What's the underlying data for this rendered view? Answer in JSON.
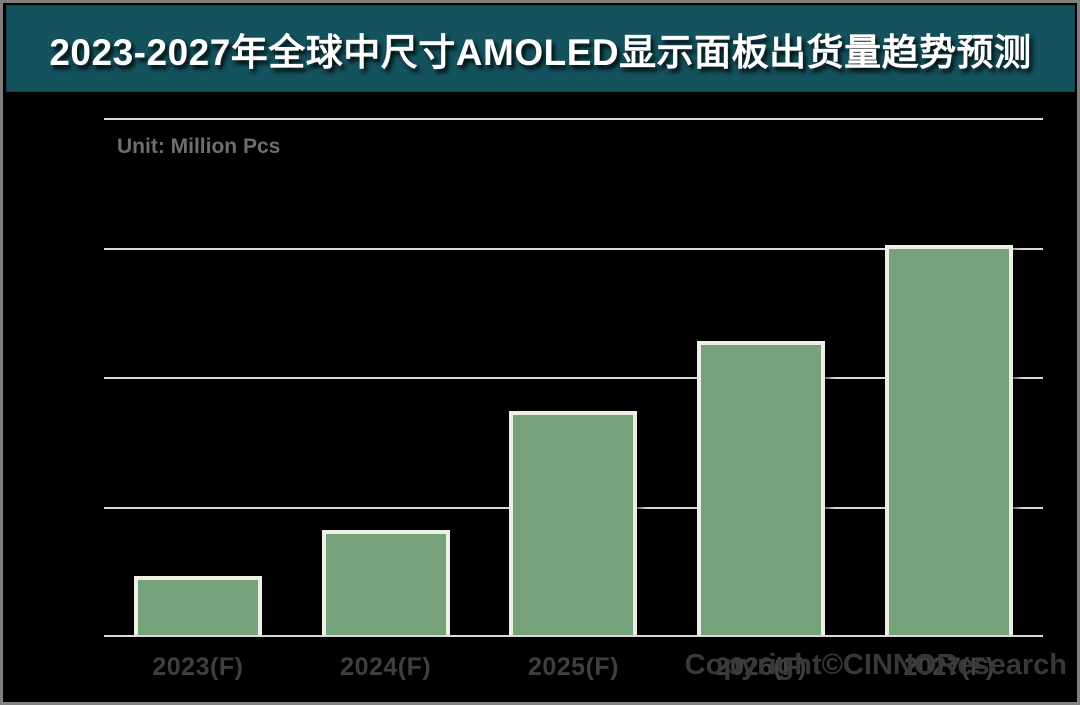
{
  "header": {
    "title": "2023-2027年全球中尺寸AMOLED显示面板出货量趋势预测"
  },
  "chart_data": {
    "type": "bar",
    "title": "2023-2027年全球中尺寸AMOLED显示面板出货量趋势预测",
    "unit_label": "Unit: Million Pcs",
    "categories": [
      "2023(F)",
      "2024(F)",
      "2025(F)",
      "2026(F)",
      "2027(F)"
    ],
    "values": [
      23,
      41,
      87,
      114,
      151
    ],
    "value_labels_shown": false,
    "ylabel": "Million Pcs",
    "ylim": [
      0,
      200
    ],
    "gridline_interval": 50,
    "grid": true,
    "legend_shown": false
  },
  "footer": {
    "copyright": "Copyright©CINNOResearch"
  },
  "colors": {
    "background": "#000000",
    "banner_bg": "#14525e",
    "title_text": "#ffffff",
    "bar_fill": "#75a27b",
    "bar_border": "#eef0e6",
    "gridline": "#d9d9d9",
    "axis_label": "#3f3f3f",
    "unit_text": "#6e6e6e",
    "copyright_text": "#383838"
  }
}
